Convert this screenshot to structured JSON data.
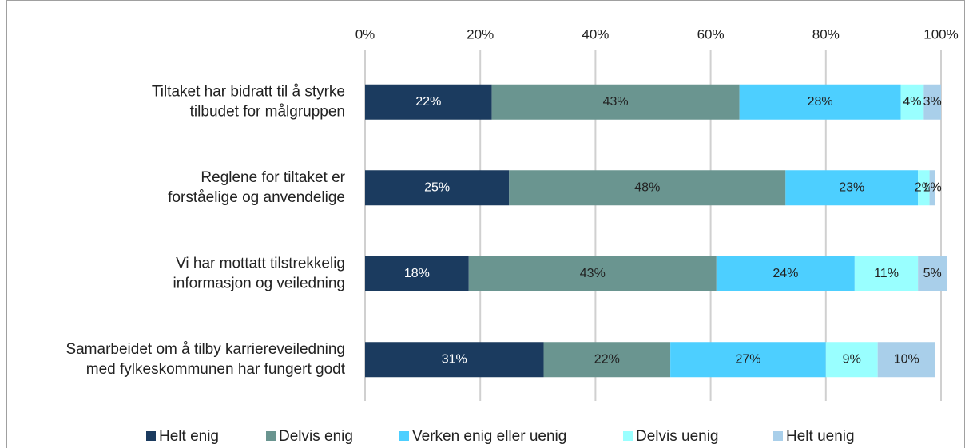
{
  "chart_data": {
    "type": "stacked_bar_horizontal",
    "categories": [
      [
        "Tiltaket har bidratt til å styrke",
        "tilbudet for målgruppen"
      ],
      [
        "Reglene for tiltaket er",
        "forståelige og anvendelige"
      ],
      [
        "Vi har mottatt tilstrekkelig",
        "informasjon og veiledning"
      ],
      [
        "Samarbeidet om å tilby karriereveiledning",
        "med fylkeskommunen har fungert godt"
      ]
    ],
    "series": [
      {
        "name": "Helt enig",
        "color": "#1b3b5f",
        "values": [
          22,
          25,
          18,
          31
        ],
        "value_labels": [
          "22%",
          "25%",
          "18%",
          "31%"
        ]
      },
      {
        "name": "Delvis enig",
        "color": "#6a9590",
        "values": [
          43,
          48,
          43,
          22
        ],
        "value_labels": [
          "43%",
          "48%",
          "43%",
          "22%"
        ]
      },
      {
        "name": "Verken enig eller uenig",
        "color": "#4dcfff",
        "values": [
          28,
          23,
          24,
          27
        ],
        "value_labels": [
          "28%",
          "23%",
          "24%",
          "27%"
        ]
      },
      {
        "name": "Delvis uenig",
        "color": "#99ffff",
        "values": [
          4,
          2,
          11,
          9
        ],
        "value_labels": [
          "4%",
          "2%",
          "11%",
          "9%"
        ]
      },
      {
        "name": "Helt uenig",
        "color": "#a9cfea",
        "values": [
          3,
          1,
          5,
          10
        ],
        "value_labels": [
          "3%",
          "1%",
          "5%",
          "10%"
        ]
      }
    ],
    "xlim": [
      0,
      100
    ],
    "xticks": [
      {
        "value": 0,
        "label": "0%"
      },
      {
        "value": 20,
        "label": "20%"
      },
      {
        "value": 40,
        "label": "40%"
      },
      {
        "value": 60,
        "label": "60%"
      },
      {
        "value": 80,
        "label": "80%"
      },
      {
        "value": 100,
        "label": "100%"
      }
    ],
    "grid": true,
    "legend": "bottom"
  }
}
